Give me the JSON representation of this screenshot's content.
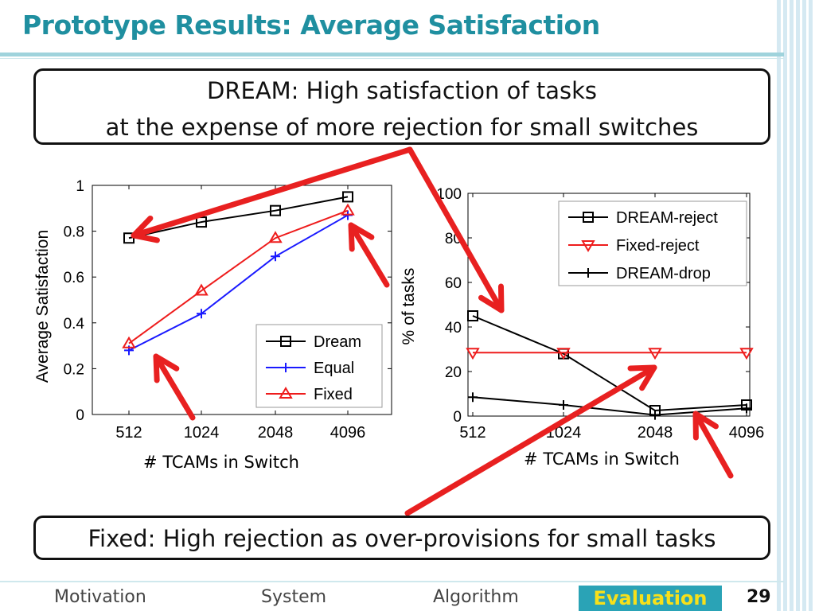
{
  "slide": {
    "title": "Prototype Results: Average Satisfaction",
    "callout_top_line1": "DREAM: High satisfaction of tasks",
    "callout_top_line2": "at the expense of more rejection for small switches",
    "callout_bottom": "Fixed: High rejection as over-provisions for small tasks",
    "page_number": "29"
  },
  "nav": {
    "items": [
      "Motivation",
      "System",
      "Algorithm"
    ],
    "active": "Evaluation"
  },
  "colors": {
    "accent": "#2aa3b6",
    "title": "#1f8fa0",
    "arrow": "#e82020",
    "active_text": "#f7e01a"
  },
  "chart_data": [
    {
      "type": "line",
      "xlabel": "# TCAMs in Switch",
      "ylabel": "Average Satisfaction",
      "categories": [
        "512",
        "1024",
        "2048",
        "4096"
      ],
      "ylim": [
        0,
        1
      ],
      "yticks": [
        "0",
        "0.2",
        "0.4",
        "0.6",
        "0.8",
        "1"
      ],
      "legend_position": "bottom-right",
      "series": [
        {
          "name": "Dream",
          "color": "#000000",
          "marker": "square",
          "values": [
            0.77,
            0.84,
            0.89,
            0.95
          ]
        },
        {
          "name": "Equal",
          "color": "#1a1aff",
          "marker": "plus",
          "values": [
            0.28,
            0.44,
            0.69,
            0.87
          ]
        },
        {
          "name": "Fixed",
          "color": "#ee1c1c",
          "marker": "triangle-up",
          "values": [
            0.31,
            0.54,
            0.77,
            0.89
          ]
        }
      ]
    },
    {
      "type": "line",
      "xlabel": "# TCAMs in Switch",
      "ylabel": "% of tasks",
      "categories": [
        "512",
        "1024",
        "2048",
        "4096"
      ],
      "ylim": [
        0,
        100
      ],
      "yticks": [
        "0",
        "20",
        "40",
        "60",
        "80",
        "100"
      ],
      "legend_position": "top-right",
      "series": [
        {
          "name": "DREAM-reject",
          "color": "#000000",
          "marker": "square",
          "values": [
            45,
            28,
            2.5,
            5
          ]
        },
        {
          "name": "Fixed-reject",
          "color": "#ee1c1c",
          "marker": "triangle-down",
          "values": [
            28.5,
            28.5,
            28.5,
            28.5
          ]
        },
        {
          "name": "DREAM-drop",
          "color": "#000000",
          "marker": "plus",
          "values": [
            8.5,
            5,
            0.5,
            3.5
          ]
        }
      ]
    }
  ]
}
